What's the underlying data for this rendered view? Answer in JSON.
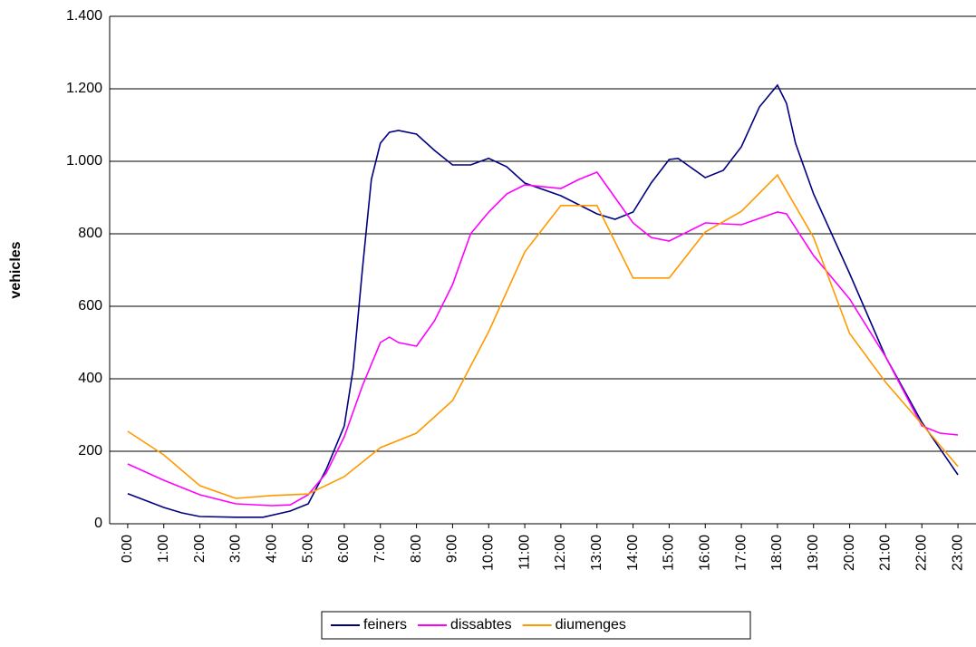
{
  "chart_data": {
    "type": "line",
    "y_label": "vehicles",
    "xlim": [
      -0.5,
      23.5
    ],
    "xticks": [
      {
        "value": 0,
        "label": "0:00"
      },
      {
        "value": 1,
        "label": "1:00"
      },
      {
        "value": 2,
        "label": "2:00"
      },
      {
        "value": 3,
        "label": "3:00"
      },
      {
        "value": 4,
        "label": "4:00"
      },
      {
        "value": 5,
        "label": "5:00"
      },
      {
        "value": 6,
        "label": "6:00"
      },
      {
        "value": 7,
        "label": "7:00"
      },
      {
        "value": 8,
        "label": "8:00"
      },
      {
        "value": 9,
        "label": "9:00"
      },
      {
        "value": 10,
        "label": "10:00"
      },
      {
        "value": 11,
        "label": "11:00"
      },
      {
        "value": 12,
        "label": "12:00"
      },
      {
        "value": 13,
        "label": "13:00"
      },
      {
        "value": 14,
        "label": "14:00"
      },
      {
        "value": 15,
        "label": "15:00"
      },
      {
        "value": 16,
        "label": "16:00"
      },
      {
        "value": 17,
        "label": "17:00"
      },
      {
        "value": 18,
        "label": "18:00"
      },
      {
        "value": 19,
        "label": "19:00"
      },
      {
        "value": 20,
        "label": "20:00"
      },
      {
        "value": 21,
        "label": "21:00"
      },
      {
        "value": 22,
        "label": "22:00"
      },
      {
        "value": 23,
        "label": "23:00"
      }
    ],
    "ylim": [
      0,
      1400
    ],
    "yticks": [
      0,
      200,
      400,
      600,
      800,
      {
        "value": 1000,
        "label": "1.000"
      },
      {
        "value": 1200,
        "label": "1.200"
      },
      {
        "value": 1400,
        "label": "1.400"
      }
    ],
    "grid": true,
    "series": [
      {
        "name": "feiners",
        "color": "#000080",
        "x": [
          0,
          1,
          1.5,
          2,
          3,
          3.75,
          4.5,
          5,
          5.5,
          6,
          6.25,
          6.5,
          6.75,
          7,
          7.25,
          7.5,
          8,
          8.5,
          9,
          9.5,
          10,
          10.5,
          11,
          12,
          13,
          13.5,
          14,
          14.5,
          15,
          15.25,
          16,
          16.5,
          17,
          17.5,
          18,
          18.25,
          18.5,
          19,
          20,
          21,
          22,
          23
        ],
        "values": [
          83,
          45,
          30,
          20,
          18,
          18,
          35,
          55,
          150,
          270,
          430,
          700,
          950,
          1050,
          1080,
          1085,
          1075,
          1030,
          990,
          990,
          1008,
          985,
          940,
          905,
          855,
          840,
          860,
          940,
          1005,
          1008,
          955,
          975,
          1040,
          1150,
          1210,
          1160,
          1050,
          910,
          690,
          460,
          280,
          135
        ]
      },
      {
        "name": "dissabtes",
        "color": "#ff00ff",
        "x": [
          0,
          1,
          2,
          3,
          4,
          4.5,
          5,
          5.5,
          6,
          6.5,
          7,
          7.25,
          7.5,
          8,
          8.5,
          9,
          9.5,
          10,
          10.5,
          11,
          12,
          12.5,
          13,
          13.5,
          14,
          14.5,
          15,
          16,
          17,
          18,
          18.25,
          19,
          20,
          21,
          22,
          22.5,
          23
        ],
        "values": [
          165,
          120,
          80,
          55,
          50,
          52,
          80,
          140,
          240,
          380,
          500,
          515,
          500,
          490,
          560,
          660,
          800,
          860,
          910,
          935,
          925,
          950,
          970,
          900,
          830,
          790,
          780,
          830,
          825,
          860,
          855,
          740,
          620,
          460,
          270,
          250,
          245
        ]
      },
      {
        "name": "diumenges",
        "color": "#ff9900",
        "x": [
          0,
          1,
          2,
          3,
          4,
          5,
          6,
          7,
          8,
          9,
          10,
          11,
          12,
          13,
          14,
          15,
          16,
          17,
          18,
          19,
          20,
          21,
          22,
          23
        ],
        "values": [
          255,
          190,
          105,
          70,
          78,
          82,
          130,
          210,
          250,
          340,
          530,
          750,
          878,
          878,
          678,
          678,
          805,
          862,
          962,
          790,
          525,
          390,
          275,
          158
        ]
      }
    ]
  }
}
